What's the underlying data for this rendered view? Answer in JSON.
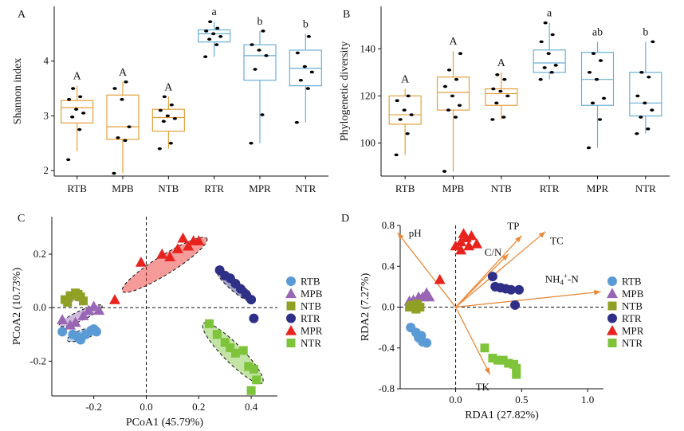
{
  "colors": {
    "RTB": "#5B9BD5",
    "MPB": "#9966B4",
    "NTB": "#8FA024",
    "RTR": "#2E2F86",
    "MPR": "#E8231E",
    "NTR": "#7DC43A",
    "bulk_box": "#E3A03C",
    "rhizo_box": "#6AAFD6",
    "arrow": "#E8893A"
  },
  "chart_data": [
    {
      "panel": "A",
      "type": "box",
      "categories": [
        "RTB",
        "MPB",
        "NTB",
        "RTR",
        "MPR",
        "NTR"
      ],
      "ylabel": "Shannon index",
      "ylim": [
        1.9,
        5.0
      ],
      "yticks": [
        2,
        3,
        4
      ],
      "boxes": [
        {
          "q1": 2.87,
          "median": 3.15,
          "q3": 3.28,
          "whisker_low": 2.35,
          "whisker_high": 3.55
        },
        {
          "q1": 2.57,
          "median": 2.8,
          "q3": 3.38,
          "whisker_low": 1.95,
          "whisker_high": 3.62
        },
        {
          "q1": 2.72,
          "median": 2.97,
          "q3": 3.12,
          "whisker_low": 2.4,
          "whisker_high": 3.35
        },
        {
          "q1": 4.35,
          "median": 4.5,
          "q3": 4.57,
          "whisker_low": 4.08,
          "whisker_high": 4.72
        },
        {
          "q1": 3.65,
          "median": 4.1,
          "q3": 4.3,
          "whisker_low": 2.5,
          "whisker_high": 4.55
        },
        {
          "q1": 3.55,
          "median": 3.87,
          "q3": 4.2,
          "whisker_low": 2.88,
          "whisker_high": 4.5
        }
      ],
      "points": [
        [
          2.2,
          2.75,
          2.98,
          3.05,
          3.12,
          3.3,
          3.35,
          3.5
        ],
        [
          1.95,
          2.55,
          2.6,
          2.8,
          3.3,
          3.5,
          3.62
        ],
        [
          2.4,
          2.5,
          2.9,
          2.95,
          3.0,
          3.1,
          3.2,
          3.35
        ],
        [
          4.08,
          4.3,
          4.4,
          4.45,
          4.5,
          4.55,
          4.6,
          4.72
        ],
        [
          2.5,
          3.02,
          3.85,
          4.1,
          4.2,
          4.3,
          4.55
        ],
        [
          2.88,
          3.5,
          3.65,
          3.8,
          3.9,
          4.15,
          4.45
        ]
      ],
      "letters": [
        "A",
        "A",
        "A",
        "a",
        "b",
        "b"
      ]
    },
    {
      "panel": "B",
      "type": "box",
      "categories": [
        "RTB",
        "MPB",
        "NTB",
        "RTR",
        "MPR",
        "NTR"
      ],
      "ylabel": "Phylogenetic diversity",
      "ylim": [
        86,
        158
      ],
      "yticks": [
        100,
        120,
        140
      ],
      "boxes": [
        {
          "q1": 108,
          "median": 112,
          "q3": 120,
          "whisker_low": 95,
          "whisker_high": 123
        },
        {
          "q1": 114,
          "median": 121.5,
          "q3": 128,
          "whisker_low": 88,
          "whisker_high": 139
        },
        {
          "q1": 116,
          "median": 121,
          "q3": 123,
          "whisker_low": 110,
          "whisker_high": 130
        },
        {
          "q1": 130,
          "median": 134,
          "q3": 139.5,
          "whisker_low": 127,
          "whisker_high": 151
        },
        {
          "q1": 116,
          "median": 127,
          "q3": 138.5,
          "whisker_low": 98,
          "whisker_high": 143
        },
        {
          "q1": 111.5,
          "median": 117,
          "q3": 130,
          "whisker_low": 104,
          "whisker_high": 143
        }
      ],
      "points": [
        [
          95,
          104,
          110,
          112,
          114,
          118,
          120
        ],
        [
          88,
          111,
          114,
          116,
          120,
          124,
          127,
          131,
          138
        ],
        [
          110,
          111,
          117,
          120,
          122,
          123,
          127,
          129
        ],
        [
          127,
          130,
          132,
          133,
          138,
          143,
          146,
          151
        ],
        [
          98,
          110,
          117,
          119,
          127,
          130,
          135,
          138
        ],
        [
          104,
          106,
          111,
          114,
          117,
          120,
          128,
          130,
          143
        ]
      ],
      "letters": [
        "A",
        "A",
        "A",
        "a",
        "ab",
        "b"
      ]
    },
    {
      "panel": "C",
      "type": "scatter",
      "xlabel": "PCoA1 (45.79%)",
      "ylabel": "PCoA2 (10.73%)",
      "xlim": [
        -0.36,
        0.5
      ],
      "ylim": [
        -0.33,
        0.34
      ],
      "xticks": [
        "-0.2",
        "0.0",
        "0.2",
        "0.4"
      ],
      "xtick_values": [
        -0.2,
        0,
        0.2,
        0.4
      ],
      "yticks": [
        "-0.2",
        "0.0",
        "0.2"
      ],
      "ytick_values": [
        -0.2,
        0,
        0.2
      ],
      "legend_position": "right",
      "series": [
        {
          "name": "RTB",
          "marker": "circle",
          "x": [
            -0.32,
            -0.28,
            -0.25,
            -0.23,
            -0.21,
            -0.2,
            -0.19,
            -0.26
          ],
          "y": [
            -0.09,
            -0.1,
            -0.12,
            -0.1,
            -0.085,
            -0.08,
            -0.09,
            -0.11
          ]
        },
        {
          "name": "MPB",
          "marker": "triangle",
          "x": [
            -0.32,
            -0.29,
            -0.27,
            -0.24,
            -0.22,
            -0.2,
            -0.18
          ],
          "y": [
            -0.045,
            -0.065,
            -0.055,
            -0.03,
            -0.01,
            0.005,
            -0.01
          ]
        },
        {
          "name": "NTB",
          "marker": "square",
          "x": [
            -0.31,
            -0.29,
            -0.27,
            -0.25,
            -0.24,
            -0.3,
            -0.26
          ],
          "y": [
            0.03,
            0.045,
            0.055,
            0.04,
            0.025,
            0.02,
            0.05
          ]
        },
        {
          "name": "RTR",
          "marker": "circle",
          "x": [
            0.28,
            0.3,
            0.32,
            0.34,
            0.36,
            0.38,
            0.4,
            0.41
          ],
          "y": [
            0.14,
            0.12,
            0.11,
            0.09,
            0.07,
            0.05,
            0.03,
            -0.04
          ]
        },
        {
          "name": "MPR",
          "marker": "triangle",
          "x": [
            -0.12,
            -0.02,
            0.06,
            0.09,
            0.12,
            0.14,
            0.16,
            0.18,
            0.2
          ],
          "y": [
            0.03,
            0.17,
            0.2,
            0.19,
            0.22,
            0.26,
            0.23,
            0.25,
            0.25
          ]
        },
        {
          "name": "NTR",
          "marker": "square",
          "x": [
            0.24,
            0.27,
            0.3,
            0.32,
            0.34,
            0.37,
            0.39,
            0.41,
            0.42,
            0.4
          ],
          "y": [
            -0.06,
            -0.1,
            -0.13,
            -0.15,
            -0.17,
            -0.16,
            -0.22,
            -0.23,
            -0.27,
            -0.31
          ]
        }
      ],
      "ellipses": [
        {
          "group": "RTB",
          "cx": -0.24,
          "cy": -0.1,
          "rx": 0.065,
          "ry": 0.018,
          "angle": 20
        },
        {
          "group": "MPB",
          "cx": -0.25,
          "cy": -0.03,
          "rx": 0.09,
          "ry": 0.018,
          "angle": 25
        },
        {
          "group": "NTB",
          "cx": -0.28,
          "cy": 0.04,
          "rx": 0.03,
          "ry": 0.015,
          "angle": 20
        },
        {
          "group": "RTR",
          "cx": 0.34,
          "cy": 0.08,
          "rx": 0.09,
          "ry": 0.02,
          "angle": -40
        },
        {
          "group": "MPR",
          "cx": 0.07,
          "cy": 0.16,
          "rx": 0.19,
          "ry": 0.035,
          "angle": 32
        },
        {
          "group": "NTR",
          "cx": 0.33,
          "cy": -0.17,
          "rx": 0.16,
          "ry": 0.035,
          "angle": -45
        }
      ]
    },
    {
      "panel": "D",
      "type": "biplot",
      "xlabel": "RDA1 (27.82%)",
      "ylabel": "RDA2 (7.27%)",
      "xlim": [
        -0.42,
        1.12
      ],
      "ylim": [
        -0.8,
        0.8
      ],
      "xticks": [
        "0.0",
        "0.5",
        "1.0"
      ],
      "xtick_values": [
        0,
        0.5,
        1.0
      ],
      "yticks": [
        "-0.8",
        "-0.4",
        "0.0",
        "0.4",
        "0.8"
      ],
      "ytick_values": [
        -0.8,
        -0.4,
        0,
        0.4,
        0.8
      ],
      "legend_position": "right",
      "series": [
        {
          "name": "RTB",
          "marker": "circle",
          "x": [
            -0.34,
            -0.3,
            -0.28,
            -0.26,
            -0.25,
            -0.22
          ],
          "y": [
            -0.2,
            -0.25,
            -0.3,
            -0.28,
            -0.34,
            -0.35
          ]
        },
        {
          "name": "MPB",
          "marker": "triangle",
          "x": [
            -0.35,
            -0.32,
            -0.28,
            -0.25,
            -0.22,
            -0.2
          ],
          "y": [
            0.06,
            0.07,
            0.1,
            0.1,
            0.14,
            0.1
          ]
        },
        {
          "name": "NTB",
          "marker": "square",
          "x": [
            -0.35,
            -0.33,
            -0.31,
            -0.29,
            -0.27,
            -0.3
          ],
          "y": [
            0.0,
            0.02,
            0.01,
            0.03,
            0.0,
            -0.02
          ]
        },
        {
          "name": "RTR",
          "marker": "circle",
          "x": [
            0.28,
            0.3,
            0.34,
            0.38,
            0.42,
            0.48,
            0.45
          ],
          "y": [
            0.3,
            0.2,
            0.19,
            0.18,
            0.17,
            0.17,
            0.02
          ]
        },
        {
          "name": "MPR",
          "marker": "triangle",
          "x": [
            -0.12,
            0.0,
            0.04,
            0.06,
            0.1,
            0.12,
            0.16,
            0.04,
            0.08
          ],
          "y": [
            0.27,
            0.6,
            0.56,
            0.72,
            0.6,
            0.7,
            0.62,
            0.64,
            0.68
          ]
        },
        {
          "name": "NTR",
          "marker": "square",
          "x": [
            0.22,
            0.28,
            0.32,
            0.36,
            0.4,
            0.44,
            0.46,
            0.46
          ],
          "y": [
            -0.4,
            -0.5,
            -0.52,
            -0.52,
            -0.55,
            -0.56,
            -0.6,
            -0.66
          ]
        }
      ],
      "vectors": [
        {
          "label": "pH",
          "x": -0.44,
          "y": 0.73
        },
        {
          "label": "TP",
          "x": 0.5,
          "y": 0.7
        },
        {
          "label": "TC",
          "x": 0.68,
          "y": 0.74
        },
        {
          "label": "C/N",
          "x": 0.4,
          "y": 0.52
        },
        {
          "label": "NH4+-N",
          "x": 1.1,
          "y": 0.15
        },
        {
          "label": "TK",
          "x": 0.26,
          "y": -0.66
        }
      ]
    }
  ]
}
